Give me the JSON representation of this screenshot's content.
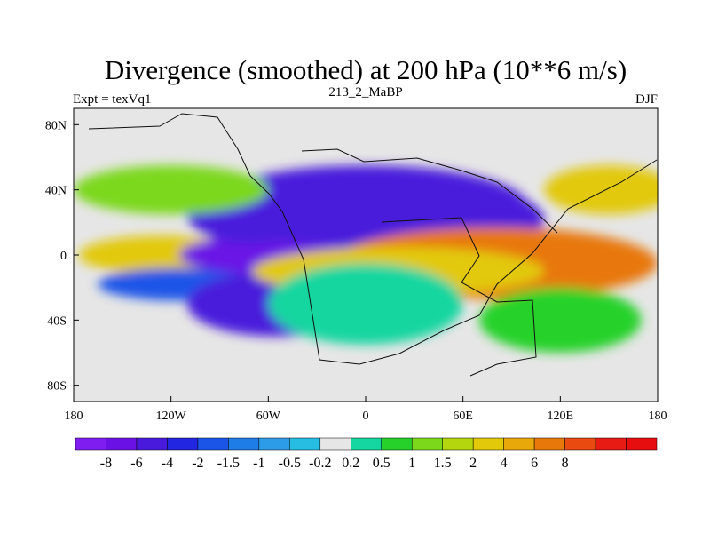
{
  "chart_data": {
    "type": "heatmap",
    "title": "Divergence (smoothed) at 200 hPa (10**6 m/s)",
    "subtitle_left": "Expt = texVq1",
    "subtitle_center": "213_2_MaBP",
    "subtitle_right": "DJF",
    "x_ticks": [
      {
        "value": -180,
        "label": "180"
      },
      {
        "value": -120,
        "label": "120W"
      },
      {
        "value": -60,
        "label": "60W"
      },
      {
        "value": 0,
        "label": "0"
      },
      {
        "value": 60,
        "label": "60E"
      },
      {
        "value": 120,
        "label": "120E"
      },
      {
        "value": 180,
        "label": "180"
      }
    ],
    "y_ticks": [
      {
        "value": 80,
        "label": "80N"
      },
      {
        "value": 40,
        "label": "40N"
      },
      {
        "value": 0,
        "label": "0"
      },
      {
        "value": -40,
        "label": "40S"
      },
      {
        "value": -80,
        "label": "80S"
      }
    ],
    "xlim": [
      -180,
      180
    ],
    "ylim": [
      -90,
      90
    ],
    "colorbar": {
      "colors": [
        "#7f1cf0",
        "#6a12e6",
        "#4a1adc",
        "#2326e0",
        "#1a55e8",
        "#1f7de8",
        "#2d9ce8",
        "#27bce2",
        "#e6e6e6",
        "#15d6a0",
        "#26d22a",
        "#7cd81a",
        "#b4d60e",
        "#e2c90a",
        "#e8a80a",
        "#e8780a",
        "#e84a10",
        "#e81a14",
        "#e60e0e"
      ],
      "labels": [
        "-8",
        "-6",
        "-4",
        "-2",
        "-1.5",
        "-1",
        "-0.5",
        "-0.2",
        "0.2",
        "0.5",
        "1",
        "1.5",
        "2",
        "4",
        "6",
        "8"
      ],
      "levels": [
        -8,
        -6,
        -4,
        -2,
        -1.5,
        -1,
        -0.5,
        -0.2,
        0.2,
        0.5,
        1,
        1.5,
        2,
        4,
        6,
        8
      ]
    },
    "features": [
      {
        "lon": -125,
        "lat": 0,
        "w": 52,
        "h": 12,
        "level": 13
      },
      {
        "lon": -115,
        "lat": -18,
        "w": 50,
        "h": 10,
        "level": 4
      },
      {
        "lon": -55,
        "lat": -30,
        "w": 55,
        "h": 20,
        "level": 2
      },
      {
        "lon": -60,
        "lat": 0,
        "w": 55,
        "h": 12,
        "level": 1
      },
      {
        "lon": -70,
        "lat": 25,
        "w": 40,
        "h": 18,
        "level": 2
      },
      {
        "lon": 0,
        "lat": 30,
        "w": 100,
        "h": 25,
        "level": 2
      },
      {
        "lon": 50,
        "lat": 22,
        "w": 60,
        "h": 20,
        "level": 2
      },
      {
        "lon": 80,
        "lat": -5,
        "w": 100,
        "h": 22,
        "level": 15
      },
      {
        "lon": 20,
        "lat": -10,
        "w": 90,
        "h": 15,
        "level": 13
      },
      {
        "lon": -120,
        "lat": 40,
        "w": 60,
        "h": 15,
        "level": 11
      },
      {
        "lon": 150,
        "lat": 40,
        "w": 40,
        "h": 15,
        "level": 13
      },
      {
        "lon": 120,
        "lat": -40,
        "w": 50,
        "h": 20,
        "level": 10
      },
      {
        "lon": 0,
        "lat": -30,
        "w": 60,
        "h": 25,
        "level": 9
      }
    ]
  }
}
